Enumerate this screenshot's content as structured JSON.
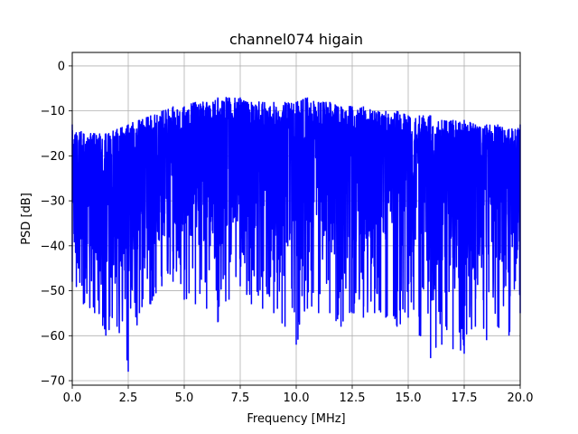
{
  "chart_data": {
    "type": "line",
    "title": "channel074 higain",
    "xlabel": "Frequency [MHz]",
    "ylabel": "PSD [dB]",
    "xlim": [
      0,
      20
    ],
    "ylim": [
      -71,
      3
    ],
    "grid": true,
    "legend": "none",
    "x_ticks": [
      0,
      2.5,
      5,
      7.5,
      10,
      12.5,
      15,
      17.5,
      20
    ],
    "x_tick_labels": [
      "0.0",
      "2.5",
      "5.0",
      "7.5",
      "10.0",
      "12.5",
      "15.0",
      "17.5",
      "20.0"
    ],
    "y_ticks": [
      0,
      -10,
      -20,
      -30,
      -40,
      -50,
      -60,
      -70
    ],
    "y_tick_labels": [
      "0",
      "−10",
      "−20",
      "−30",
      "−40",
      "−50",
      "−60",
      "−70"
    ],
    "series": [
      {
        "color": "#0000ff",
        "x": [
          0,
          0.5,
          1,
          1.5,
          2,
          2.5,
          3,
          3.5,
          4,
          4.5,
          5,
          5.5,
          6,
          6.5,
          7,
          7.5,
          8,
          8.5,
          9,
          9.5,
          10,
          10.5,
          11,
          11.5,
          12,
          12.5,
          13,
          13.5,
          14,
          14.5,
          15,
          15.5,
          16,
          16.5,
          17,
          17.5,
          18,
          18.5,
          19,
          19.5,
          20
        ],
        "upper": [
          -13,
          -15,
          -15,
          -15,
          -14,
          -13,
          -12,
          -11,
          -10,
          -9,
          -9,
          -8,
          -8,
          -7,
          -7,
          -7,
          -8,
          -8,
          -8,
          -8,
          -8,
          -7,
          -8,
          -8,
          -9,
          -9,
          -9,
          -10,
          -10,
          -10,
          -11,
          -11,
          -11,
          -12,
          -12,
          -12,
          -13,
          -13,
          -13,
          -14,
          -13
        ],
        "lower": [
          -48,
          -53,
          -55,
          -60,
          -58,
          -68,
          -55,
          -53,
          -49,
          -48,
          -52,
          -53,
          -54,
          -57,
          -52,
          -49,
          -53,
          -54,
          -55,
          -58,
          -62,
          -54,
          -55,
          -55,
          -58,
          -55,
          -56,
          -55,
          -56,
          -58,
          -56,
          -60,
          -65,
          -62,
          -63,
          -64,
          -58,
          -61,
          -58,
          -60,
          -55
        ]
      }
    ]
  }
}
